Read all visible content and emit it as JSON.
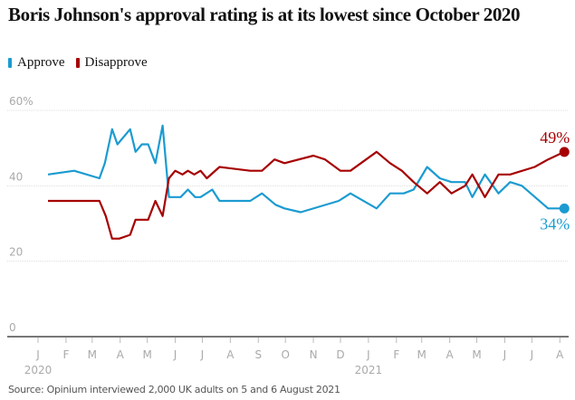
{
  "chart_data": {
    "type": "line",
    "title": "Boris Johnson's approval rating is at its lowest since October 2020",
    "xlabel": "",
    "ylabel": "",
    "ylim": [
      0,
      60
    ],
    "xlim": [
      "2020-01-01",
      "2021-08-10"
    ],
    "grid": true,
    "legend_position": "top-left",
    "y_ticks": [
      {
        "value": 0,
        "label": "0"
      },
      {
        "value": 20,
        "label": "20"
      },
      {
        "value": 40,
        "label": "40"
      },
      {
        "value": 60,
        "label": "60%"
      }
    ],
    "x_ticks": [
      {
        "date": "2020-01-01",
        "label": "J"
      },
      {
        "date": "2020-02-01",
        "label": "F"
      },
      {
        "date": "2020-03-01",
        "label": "M"
      },
      {
        "date": "2020-04-01",
        "label": "A"
      },
      {
        "date": "2020-05-01",
        "label": "M"
      },
      {
        "date": "2020-06-01",
        "label": "J"
      },
      {
        "date": "2020-07-01",
        "label": "J"
      },
      {
        "date": "2020-08-01",
        "label": "A"
      },
      {
        "date": "2020-09-01",
        "label": "S"
      },
      {
        "date": "2020-10-01",
        "label": "O"
      },
      {
        "date": "2020-11-01",
        "label": "N"
      },
      {
        "date": "2020-12-01",
        "label": "D"
      },
      {
        "date": "2021-01-01",
        "label": "J"
      },
      {
        "date": "2021-02-01",
        "label": "F"
      },
      {
        "date": "2021-03-01",
        "label": "M"
      },
      {
        "date": "2021-04-01",
        "label": "A"
      },
      {
        "date": "2021-05-01",
        "label": "M"
      },
      {
        "date": "2021-06-01",
        "label": "J"
      },
      {
        "date": "2021-07-01",
        "label": "J"
      },
      {
        "date": "2021-08-01",
        "label": "A"
      }
    ],
    "year_labels": [
      {
        "date": "2020-01-01",
        "label": "2020"
      },
      {
        "date": "2021-01-01",
        "label": "2021"
      }
    ],
    "series": [
      {
        "name": "Approve",
        "color": "#1b9bd1",
        "end_label": "34%",
        "x": [
          "2020-01-12",
          "2020-02-10",
          "2020-03-09",
          "2020-03-15",
          "2020-03-23",
          "2020-03-29",
          "2020-04-12",
          "2020-04-18",
          "2020-04-25",
          "2020-05-02",
          "2020-05-10",
          "2020-05-18",
          "2020-05-25",
          "2020-06-07",
          "2020-06-15",
          "2020-06-23",
          "2020-06-29",
          "2020-07-12",
          "2020-07-20",
          "2020-08-23",
          "2020-09-05",
          "2020-09-20",
          "2020-09-30",
          "2020-10-18",
          "2020-11-29",
          "2020-12-12",
          "2021-01-10",
          "2021-01-25",
          "2021-02-09",
          "2021-02-20",
          "2021-03-07",
          "2021-03-21",
          "2021-04-03",
          "2021-04-18",
          "2021-04-26",
          "2021-05-10",
          "2021-05-25",
          "2021-06-07",
          "2021-06-20",
          "2021-07-19",
          "2021-08-06"
        ],
        "values": [
          43,
          44,
          42,
          46,
          55,
          51,
          55,
          49,
          51,
          51,
          46,
          56,
          37,
          37,
          39,
          37,
          37,
          39,
          36,
          36,
          38,
          35,
          34,
          33,
          36,
          38,
          34,
          38,
          38,
          39,
          45,
          42,
          41,
          41,
          37,
          43,
          38,
          41,
          40,
          34,
          34
        ]
      },
      {
        "name": "Disapprove",
        "color": "#a60000",
        "end_label": "49%",
        "x": [
          "2020-01-12",
          "2020-03-09",
          "2020-03-16",
          "2020-03-23",
          "2020-03-31",
          "2020-04-12",
          "2020-04-18",
          "2020-05-02",
          "2020-05-10",
          "2020-05-18",
          "2020-05-25",
          "2020-06-01",
          "2020-06-09",
          "2020-06-15",
          "2020-06-22",
          "2020-06-29",
          "2020-07-06",
          "2020-07-20",
          "2020-08-23",
          "2020-09-05",
          "2020-09-19",
          "2020-09-30",
          "2020-11-01",
          "2020-11-14",
          "2020-12-01",
          "2020-12-12",
          "2021-01-10",
          "2021-01-25",
          "2021-02-07",
          "2021-02-20",
          "2021-03-07",
          "2021-03-21",
          "2021-04-03",
          "2021-04-18",
          "2021-04-26",
          "2021-05-10",
          "2021-05-25",
          "2021-06-07",
          "2021-07-04",
          "2021-07-19",
          "2021-08-06"
        ],
        "values": [
          36,
          36,
          32,
          26,
          26,
          27,
          31,
          31,
          36,
          32,
          42,
          44,
          43,
          44,
          43,
          44,
          42,
          45,
          44,
          44,
          47,
          46,
          48,
          47,
          44,
          44,
          49,
          46,
          44,
          41,
          38,
          41,
          38,
          40,
          43,
          37,
          43,
          43,
          45,
          47,
          49
        ]
      }
    ]
  },
  "source": "Source: Opinium interviewed 2,000 UK adults on 5 and 6 August 2021"
}
